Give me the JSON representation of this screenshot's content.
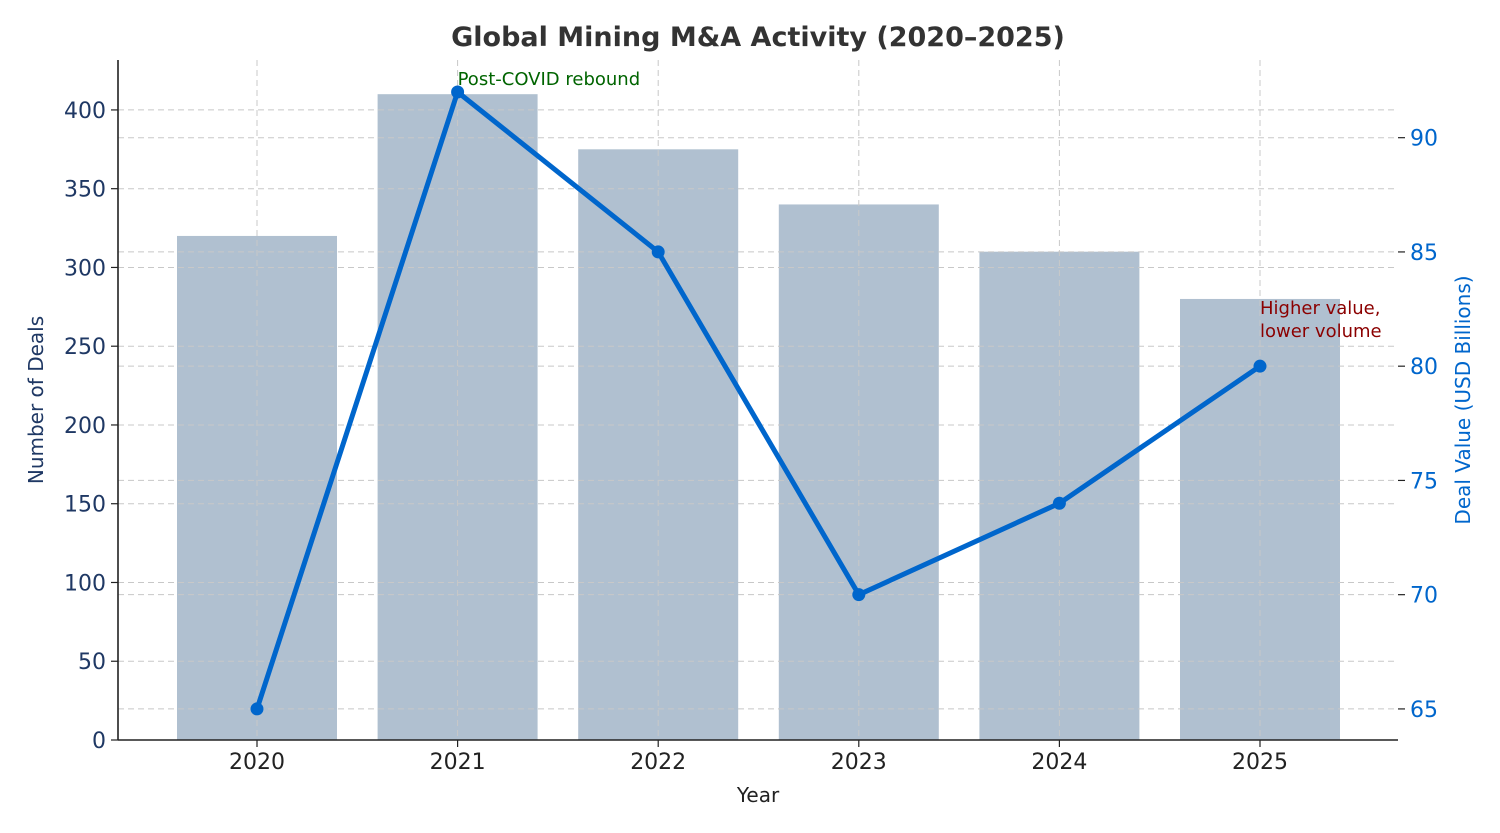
{
  "chart_data": {
    "type": "bar+line",
    "title": "Global Mining M&A Activity (2020–2025)",
    "xlabel": "Year",
    "ylabel_left": "Number of Deals",
    "ylabel_right": "Deal Value (USD Billions)",
    "categories": [
      "2020",
      "2021",
      "2022",
      "2023",
      "2024",
      "2025"
    ],
    "series": [
      {
        "name": "Number of Deals",
        "type": "bar",
        "axis": "left",
        "values": [
          320,
          410,
          375,
          340,
          310,
          280
        ],
        "color": "#b0c0d0"
      },
      {
        "name": "Deal Value (USD Billions)",
        "type": "line",
        "axis": "right",
        "values": [
          65,
          92,
          85,
          70,
          74,
          80
        ],
        "color": "#0066cc"
      }
    ],
    "ylim_left": [
      0,
      431.7
    ],
    "ylim_right": [
      63.64,
      93.4
    ],
    "yticks_left": [
      "0",
      "50",
      "100",
      "150",
      "200",
      "250",
      "300",
      "350",
      "400"
    ],
    "yticks_right": [
      "65",
      "70",
      "75",
      "80",
      "85",
      "90"
    ],
    "grid": true,
    "annotations": [
      {
        "text": "Post-COVID rebound",
        "category": "2021",
        "value": 92,
        "color": "#006400"
      },
      {
        "text_lines": [
          "Higher value,",
          "lower volume"
        ],
        "category": "2025",
        "value": 80,
        "color": "#8b0000"
      }
    ],
    "left_tick_color": "#1f3864",
    "right_tick_color": "#0066cc"
  }
}
